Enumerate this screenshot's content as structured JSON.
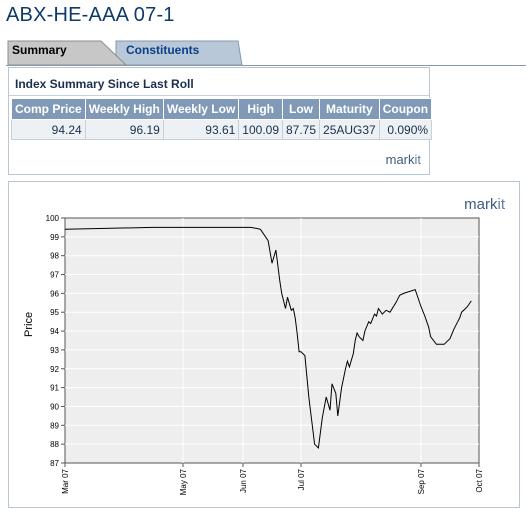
{
  "page": {
    "title": "ABX-HE-AAA 07-1"
  },
  "tabs": [
    {
      "label": "Summary",
      "active": true
    },
    {
      "label": "Constituents",
      "active": false
    }
  ],
  "summary": {
    "heading": "Index Summary Since Last Roll",
    "columns": [
      "Comp Price",
      "Weekly High",
      "Weekly Low",
      "High",
      "Low",
      "Maturity",
      "Coupon"
    ],
    "row": [
      "94.24",
      "96.19",
      "93.61",
      "100.09",
      "87.75",
      "25AUG37",
      "0.090%"
    ],
    "brand_main": "mark",
    "brand_accent": "it"
  },
  "chart": {
    "brand_main": "mark",
    "brand_accent": "it"
  },
  "chart_data": {
    "type": "line",
    "ylabel": "Price",
    "xlabel": "",
    "title": "",
    "ylim": [
      87,
      100
    ],
    "y_ticks": [
      87,
      88,
      89,
      90,
      91,
      92,
      93,
      94,
      95,
      96,
      97,
      98,
      99,
      100
    ],
    "x_range": [
      "2007-03-01",
      "2007-10-01"
    ],
    "x_ticks": [
      {
        "label": "Mar 07",
        "date": "2007-03-01"
      },
      {
        "label": "May 07",
        "date": "2007-05-01"
      },
      {
        "label": "Jun 07",
        "date": "2007-06-01"
      },
      {
        "label": "Jul 07",
        "date": "2007-07-01"
      },
      {
        "label": "Sep 07",
        "date": "2007-09-01"
      },
      {
        "label": "Oct 07",
        "date": "2007-10-01"
      }
    ],
    "grid": true,
    "colors": {
      "line": "#000000",
      "plot_bg": "#eeeeee",
      "grid": "#ffffff"
    },
    "series": [
      {
        "x": [
          "2007-03-01",
          "2007-04-15",
          "2007-06-05",
          "2007-06-08",
          "2007-06-10",
          "2007-06-14",
          "2007-06-16",
          "2007-06-18",
          "2007-06-20",
          "2007-06-21",
          "2007-06-23",
          "2007-06-24",
          "2007-06-26",
          "2007-06-27",
          "2007-06-28",
          "2007-06-29",
          "2007-06-30",
          "2007-07-01",
          "2007-07-03",
          "2007-07-05",
          "2007-07-08",
          "2007-07-10",
          "2007-07-12",
          "2007-07-14",
          "2007-07-16",
          "2007-07-17",
          "2007-07-19",
          "2007-07-20",
          "2007-07-22",
          "2007-07-24",
          "2007-07-25",
          "2007-07-26",
          "2007-07-28",
          "2007-07-29",
          "2007-07-30",
          "2007-07-31",
          "2007-08-02",
          "2007-08-03",
          "2007-08-05",
          "2007-08-06",
          "2007-08-08",
          "2007-08-09",
          "2007-08-10",
          "2007-08-12",
          "2007-08-14",
          "2007-08-16",
          "2007-08-19",
          "2007-08-21",
          "2007-08-23",
          "2007-08-26",
          "2007-08-29",
          "2007-09-01",
          "2007-09-03",
          "2007-09-05",
          "2007-09-06",
          "2007-09-09",
          "2007-09-13",
          "2007-09-16",
          "2007-09-18",
          "2007-09-20",
          "2007-09-21",
          "2007-09-22",
          "2007-09-24",
          "2007-09-25",
          "2007-09-27"
        ],
        "y": [
          99.4,
          99.5,
          99.5,
          99.45,
          99.4,
          98.8,
          97.6,
          98.3,
          96.7,
          96.0,
          95.2,
          95.8,
          95.1,
          95.2,
          94.7,
          93.9,
          92.9,
          92.9,
          92.7,
          90.5,
          88.0,
          87.8,
          89.4,
          90.5,
          89.8,
          91.2,
          90.7,
          89.5,
          91.0,
          92.0,
          92.4,
          92.1,
          92.8,
          93.5,
          93.9,
          93.7,
          93.5,
          94.0,
          94.5,
          94.4,
          94.9,
          94.8,
          95.2,
          94.9,
          95.1,
          95.0,
          95.5,
          95.9,
          96.0,
          96.1,
          96.2,
          95.3,
          94.8,
          94.2,
          93.7,
          93.3,
          93.3,
          93.6,
          94.1,
          94.5,
          94.7,
          95.0,
          95.2,
          95.3,
          95.6
        ]
      }
    ]
  }
}
